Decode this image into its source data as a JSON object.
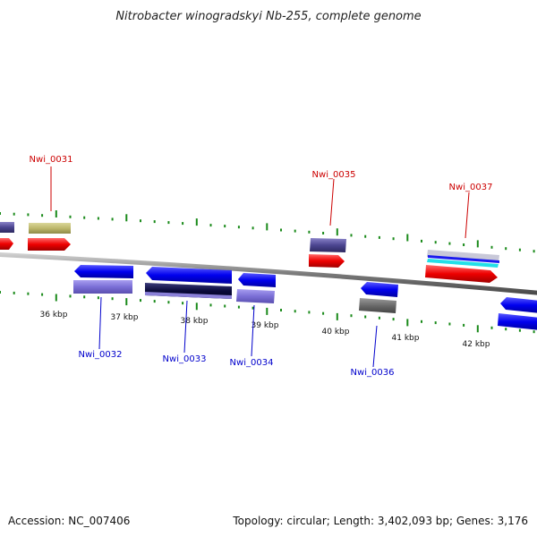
{
  "title": "Nitrobacter winogradskyi Nb-255, complete genome",
  "footer": {
    "accession": "Accession: NC_007406",
    "summary": "Topology: circular; Length: 3,402,093 bp; Genes: 3,176"
  },
  "colors": {
    "forward_label": "#cc0000",
    "reverse_label": "#0000cc",
    "tick": "#1a8a1a",
    "backbone": "#888888"
  },
  "scale": {
    "unit": "kbp",
    "labels": [
      "36 kbp",
      "37 kbp",
      "38 kbp",
      "39 kbp",
      "40 kbp",
      "41 kbp",
      "42 kbp"
    ]
  },
  "genes_labeled": {
    "forward": [
      "Nwi_0031",
      "Nwi_0035",
      "Nwi_0037"
    ],
    "reverse": [
      "Nwi_0032",
      "Nwi_0033",
      "Nwi_0034",
      "Nwi_0036"
    ]
  }
}
